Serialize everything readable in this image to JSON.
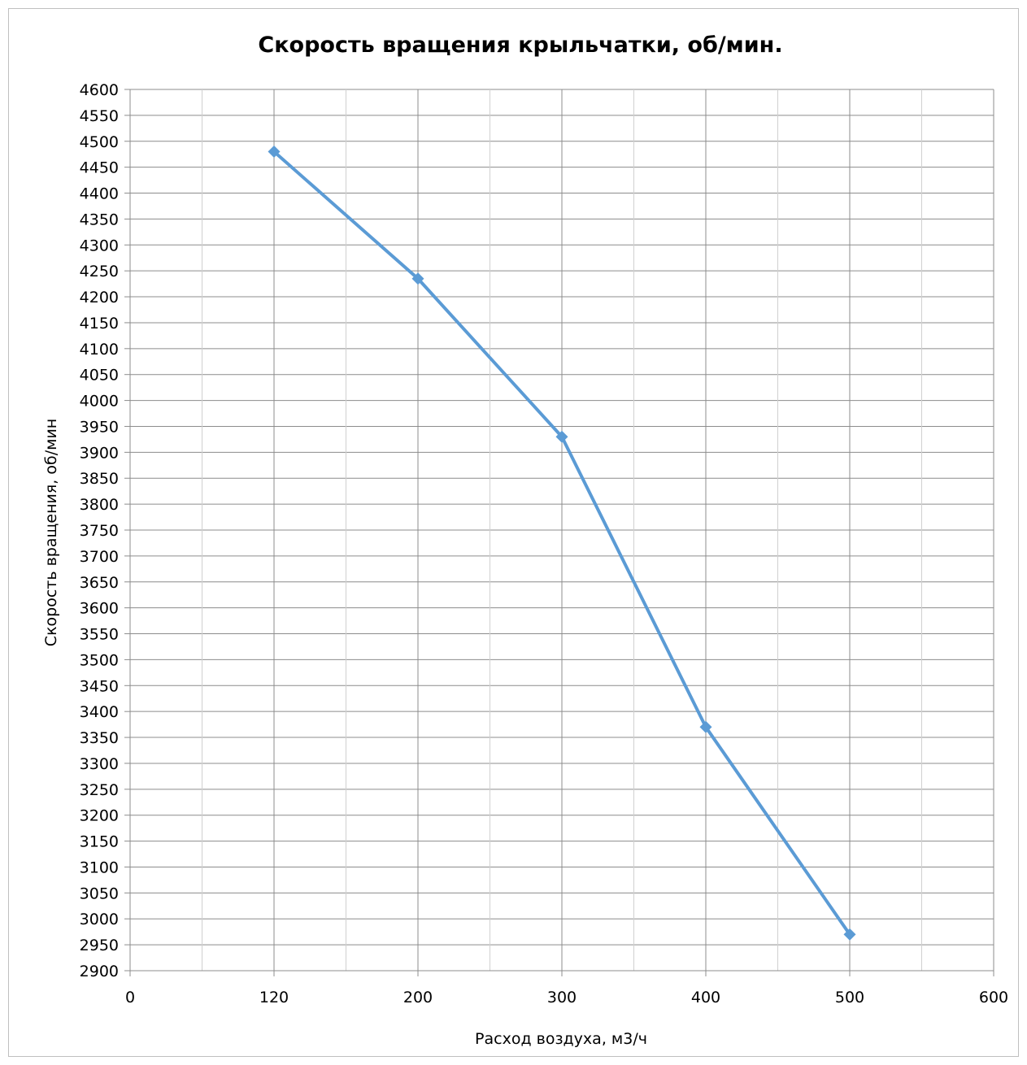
{
  "chart_data": {
    "type": "line",
    "title": "Скорость вращения крыльчатки, об/мин.",
    "xlabel": "Расход воздуха, м3/ч",
    "ylabel": "Скорость вращения, об/мин",
    "x_tick_labels": [
      "0",
      "120",
      "200",
      "300",
      "400",
      "500",
      "600"
    ],
    "ylim": [
      2900,
      4600
    ],
    "y_step": 50,
    "grid": true,
    "legend": "none",
    "series": [
      {
        "x": [
          "120",
          "200",
          "300",
          "400",
          "500"
        ],
        "values": [
          4480,
          4235,
          3930,
          3370,
          2970
        ],
        "color": "#5b9bd5",
        "marker": "diamond"
      }
    ]
  }
}
